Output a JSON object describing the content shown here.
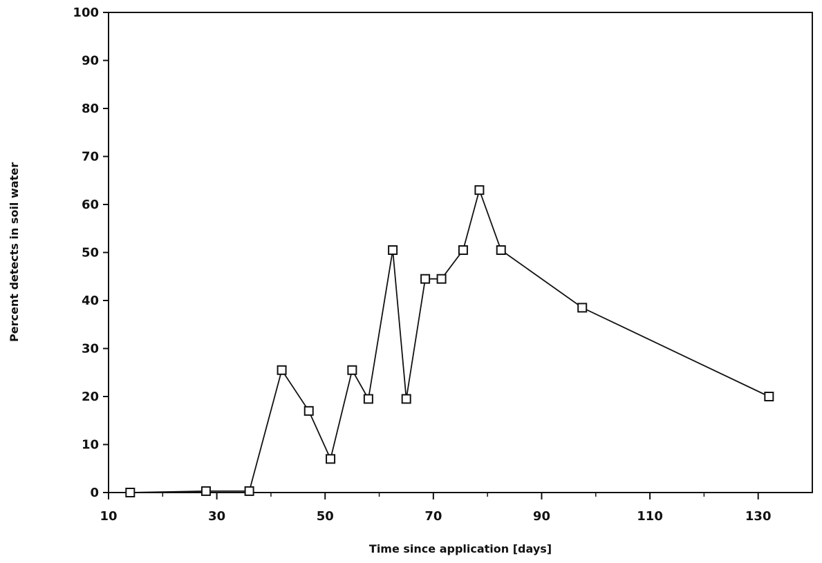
{
  "chart_data": {
    "type": "line",
    "xlabel": "Time since application [days]",
    "ylabel": "Percent detects in soil water",
    "xlim": [
      10,
      140
    ],
    "ylim": [
      0,
      100
    ],
    "x_ticks": [
      10,
      30,
      50,
      70,
      90,
      110,
      130
    ],
    "y_ticks": [
      0,
      10,
      20,
      30,
      40,
      50,
      60,
      70,
      80,
      90,
      100
    ],
    "grid": false,
    "marker": "open-square",
    "line_color": "#111111",
    "series": [
      {
        "x": [
          14,
          28,
          36,
          42,
          47,
          51,
          55,
          58,
          62.5,
          65,
          68.5,
          71.5,
          75.5,
          78.5,
          82.5,
          97.5,
          132
        ],
        "y": [
          0,
          0.3,
          0.3,
          25.5,
          17,
          7,
          25.5,
          19.5,
          50.5,
          19.5,
          44.5,
          44.5,
          50.5,
          63,
          50.5,
          38.5,
          20
        ]
      }
    ]
  }
}
